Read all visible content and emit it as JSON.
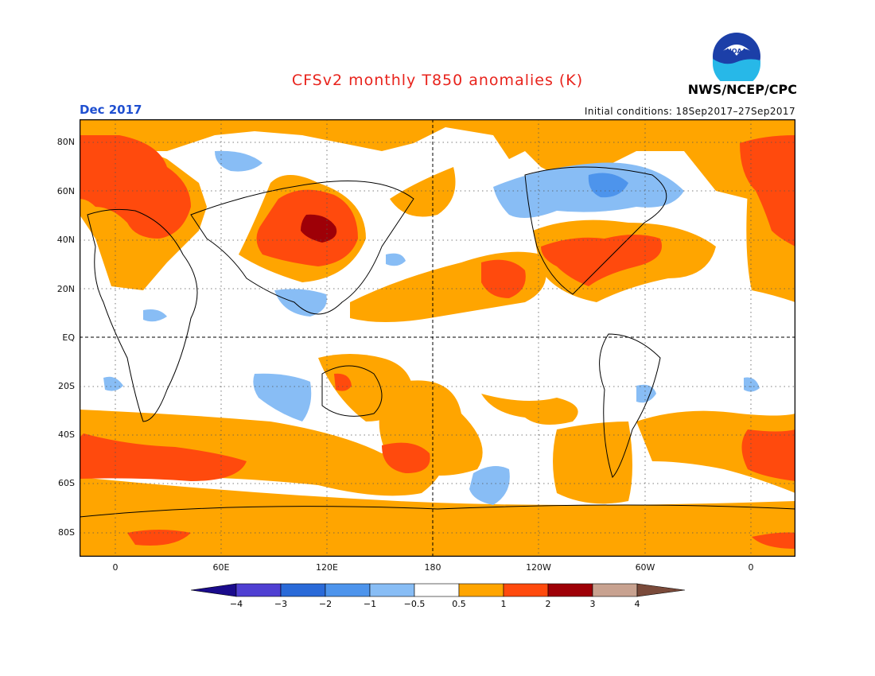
{
  "title": "CFSv2 monthly T850 anomalies (K)",
  "month_label": "Dec 2017",
  "initial_conditions": "Initial conditions: 18Sep2017–27Sep2017",
  "organization": "NWS/NCEP/CPC",
  "logo_text": "NOAA",
  "map": {
    "lat_labels": [
      "80N",
      "60N",
      "40N",
      "20N",
      "EQ",
      "20S",
      "40S",
      "60S",
      "80S"
    ],
    "lon_labels": [
      "0",
      "60E",
      "120E",
      "180",
      "120W",
      "60W",
      "0"
    ]
  },
  "colorbar": {
    "labels": [
      "−4",
      "−3",
      "−2",
      "−1",
      "−0.5",
      "0.5",
      "1",
      "2",
      "3",
      "4"
    ],
    "colors": [
      "#1a0b8c",
      "#4f3fd2",
      "#2a6ad8",
      "#4d94ec",
      "#88bdf5",
      "#ffffff",
      "#ffa500",
      "#ff4a0d",
      "#9e0007",
      "#c8a290",
      "#7a4a3a"
    ]
  },
  "colors": {
    "orange": "#ffa500",
    "red": "#ff4a0d",
    "darkred": "#9e0007",
    "lightblue": "#88bdf5",
    "blue": "#4d94ec",
    "title": "#e8231c",
    "month": "#1f4fd0"
  }
}
